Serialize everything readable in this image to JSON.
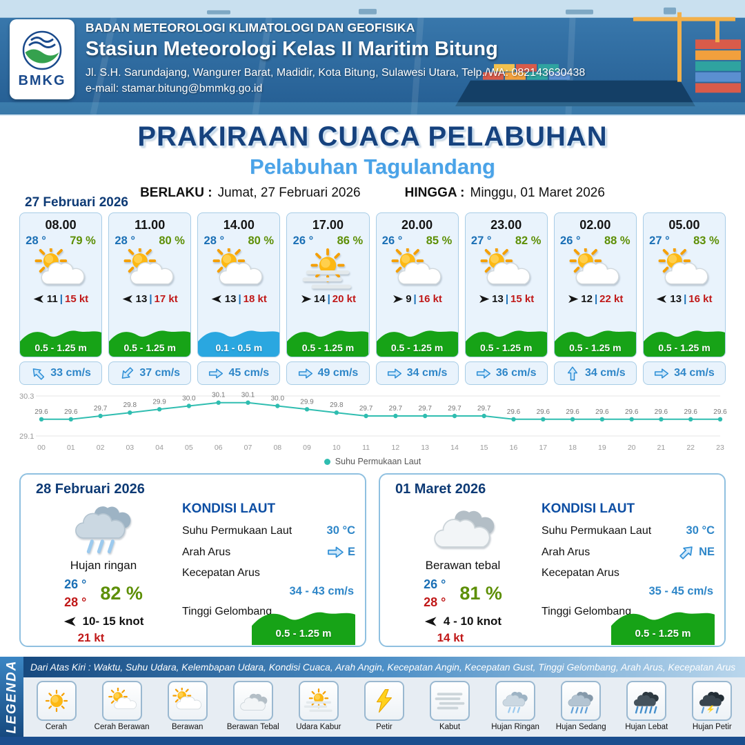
{
  "header": {
    "logo_text": "BMKG",
    "agency": "BADAN METEOROLOGI KLIMATOLOGI DAN GEOFISIKA",
    "station": "Stasiun Meteorologi Kelas II Maritim Bitung",
    "address": "Jl. S.H. Sarundajang, Wangurer Barat, Madidir, Kota Bitung, Sulawesi Utara, Telp./WA: 082143630438",
    "email": "e-mail: stamar.bitung@bmmkg.go.id"
  },
  "title": {
    "main": "PRAKIRAAN CUACA PELABUHAN",
    "subtitle": "Pelabuhan Tagulandang",
    "valid_from_label": "BERLAKU :",
    "valid_from": "Jumat, 27 Februari 2026",
    "valid_to_label": "HINGGA :",
    "valid_to": "Minggu, 01 Maret 2026"
  },
  "forecast": {
    "date": "27 Februari 2026",
    "cards": [
      {
        "time": "08.00",
        "temp": "28 °",
        "humidity": "79 %",
        "icon": "berawan",
        "wind_dir": "W",
        "wind_speed": "11",
        "wind_sep": "|",
        "gust": "15 kt",
        "wave": "0.5 - 1.25 m",
        "current_dir": "NW",
        "current": "33 cm/s"
      },
      {
        "time": "11.00",
        "temp": "28 °",
        "humidity": "80 %",
        "icon": "berawan",
        "wind_dir": "W",
        "wind_speed": "13",
        "wind_sep": "|",
        "gust": "17 kt",
        "wave": "0.5 - 1.25 m",
        "current_dir": "SW",
        "current": "37 cm/s"
      },
      {
        "time": "14.00",
        "temp": "28 °",
        "humidity": "80 %",
        "icon": "berawan",
        "wind_dir": "W",
        "wind_speed": "13",
        "wind_sep": "|",
        "gust": "18 kt",
        "wave": "0.1 - 0.5 m",
        "current_dir": "E",
        "current": "45 cm/s"
      },
      {
        "time": "17.00",
        "temp": "26 °",
        "humidity": "86 %",
        "icon": "udara-kabur",
        "wind_dir": "E",
        "wind_speed": "14",
        "wind_sep": "|",
        "gust": "20 kt",
        "wave": "0.5 - 1.25 m",
        "current_dir": "E",
        "current": "49 cm/s"
      },
      {
        "time": "20.00",
        "temp": "26 °",
        "humidity": "85 %",
        "icon": "berawan",
        "wind_dir": "E",
        "wind_speed": "9",
        "wind_sep": "|",
        "gust": "16 kt",
        "wave": "0.5 - 1.25 m",
        "current_dir": "E",
        "current": "34 cm/s"
      },
      {
        "time": "23.00",
        "temp": "27 °",
        "humidity": "82 %",
        "icon": "berawan",
        "wind_dir": "E",
        "wind_speed": "13",
        "wind_sep": "|",
        "gust": "15 kt",
        "wave": "0.5 - 1.25 m",
        "current_dir": "E",
        "current": "36 cm/s"
      },
      {
        "time": "02.00",
        "temp": "26 °",
        "humidity": "88 %",
        "icon": "berawan",
        "wind_dir": "E",
        "wind_speed": "12",
        "wind_sep": "|",
        "gust": "22 kt",
        "wave": "0.5 - 1.25 m",
        "current_dir": "N",
        "current": "34 cm/s"
      },
      {
        "time": "05.00",
        "temp": "27 °",
        "humidity": "83 %",
        "icon": "berawan",
        "wind_dir": "W",
        "wind_speed": "13",
        "wind_sep": "|",
        "gust": "16 kt",
        "wave": "0.5 - 1.25 m",
        "current_dir": "E",
        "current": "34 cm/s"
      }
    ]
  },
  "chart_data": {
    "type": "line",
    "series_label": "Suhu Permukaan Laut",
    "x": [
      "00",
      "01",
      "02",
      "03",
      "04",
      "05",
      "06",
      "07",
      "08",
      "09",
      "10",
      "11",
      "12",
      "13",
      "14",
      "15",
      "16",
      "17",
      "18",
      "19",
      "20",
      "21",
      "22",
      "23"
    ],
    "values": [
      29.6,
      29.6,
      29.7,
      29.8,
      29.9,
      30.0,
      30.1,
      30.1,
      30.0,
      29.9,
      29.8,
      29.7,
      29.7,
      29.7,
      29.7,
      29.7,
      29.6,
      29.6,
      29.6,
      29.6,
      29.6,
      29.6,
      29.6,
      29.6
    ],
    "ylim": [
      29.1,
      30.3
    ],
    "line_color": "#2fbdb0",
    "grid": "horizontal-minmax",
    "legend_position": "bottom"
  },
  "summaries": [
    {
      "date": "28 Februari 2026",
      "icon": "hujan-ringan",
      "condition": "Hujan ringan",
      "temp_min": "26 °",
      "temp_max": "28 °",
      "humidity": "82 %",
      "wind_dir": "W",
      "wind": "10- 15 knot",
      "gust": "21 kt",
      "sea": {
        "title": "KONDISI LAUT",
        "sst_label": "Suhu Permukaan Laut",
        "sst": "30 °C",
        "current_dir_label": "Arah Arus",
        "current_dir": "E",
        "current_speed_label": "Kecepatan Arus",
        "current_speed": "34 - 43 cm/s",
        "wave_label": "Tinggi Gelombang",
        "wave": "0.5 - 1.25 m"
      }
    },
    {
      "date": "01 Maret 2026",
      "icon": "berawan-tebal",
      "condition": "Berawan tebal",
      "temp_min": "26 °",
      "temp_max": "28 °",
      "humidity": "81 %",
      "wind_dir": "W",
      "wind": "4 - 10 knot",
      "gust": "14 kt",
      "sea": {
        "title": "KONDISI LAUT",
        "sst_label": "Suhu Permukaan Laut",
        "sst": "30 °C",
        "current_dir_label": "Arah Arus",
        "current_dir": "NE",
        "current_speed_label": "Kecepatan Arus",
        "current_speed": "35 - 45 cm/s",
        "wave_label": "Tinggi Gelombang",
        "wave": "0.5 - 1.25 m"
      }
    }
  ],
  "legend": {
    "title": "LEGENDA",
    "description": "Dari Atas Kiri : Waktu, Suhu Udara, Kelembapan Udara, Kondisi Cuaca, Arah Angin, Kecepatan Angin, Kecepatan Gust, Tinggi Gelombang, Arah Arus, Kecepatan Arus",
    "items": [
      {
        "label": "Cerah",
        "icon": "cerah"
      },
      {
        "label": "Cerah Berawan",
        "icon": "cerah-berawan"
      },
      {
        "label": "Berawan",
        "icon": "berawan"
      },
      {
        "label": "Berawan Tebal",
        "icon": "berawan-tebal"
      },
      {
        "label": "Udara Kabur",
        "icon": "udara-kabur"
      },
      {
        "label": "Petir",
        "icon": "petir"
      },
      {
        "label": "Kabut",
        "icon": "kabut"
      },
      {
        "label": "Hujan Ringan",
        "icon": "hujan-ringan"
      },
      {
        "label": "Hujan Sedang",
        "icon": "hujan-sedang"
      },
      {
        "label": "Hujan Lebat",
        "icon": "hujan-lebat"
      },
      {
        "label": "Hujan Petir",
        "icon": "hujan-petir"
      }
    ]
  },
  "colors": {
    "header_blue": "#2e6ca3",
    "title_navy": "#16427e",
    "subtitle_blue": "#4aa3e8",
    "temp_blue": "#1a6fb5",
    "humidity_green": "#5d8f06",
    "gust_red": "#c01818",
    "wave_green": "#17a317",
    "wave_blue": "#2aa7e0",
    "current_blue": "#2e86c8",
    "chart_teal": "#2fbdb0",
    "legend_bar_blue": "#1b4e8e"
  }
}
